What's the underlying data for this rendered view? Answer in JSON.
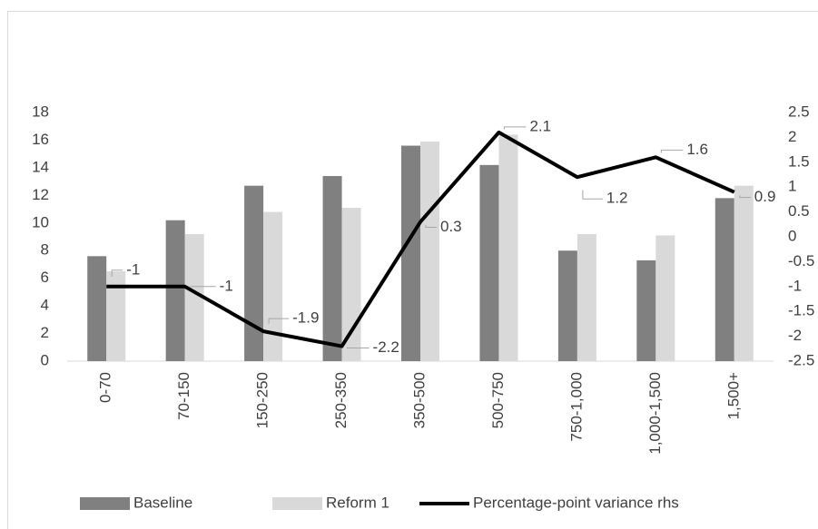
{
  "chart_data": {
    "type": "bar",
    "categories": [
      "0-70",
      "70-150",
      "150-250",
      "250-350",
      "350-500",
      "500-750",
      "750-1,000",
      "1,000-1,500",
      "1,500+"
    ],
    "series": [
      {
        "name": "Baseline",
        "color": "#808080",
        "values": [
          7.6,
          10.2,
          12.7,
          13.4,
          15.6,
          14.2,
          8.0,
          7.3,
          11.8
        ]
      },
      {
        "name": "Reform 1",
        "color": "#d9d9d9",
        "values": [
          6.5,
          9.2,
          10.8,
          11.1,
          15.9,
          16.4,
          9.2,
          9.1,
          12.7
        ]
      },
      {
        "name": "Percentage-point variance rhs",
        "color": "#000000",
        "type": "line",
        "axis": "y2",
        "values": [
          -1,
          -1,
          -1.9,
          -2.2,
          0.3,
          2.1,
          1.2,
          1.6,
          0.9
        ]
      }
    ],
    "ylim": [
      0,
      18
    ],
    "yticks": [
      0,
      2,
      4,
      6,
      8,
      10,
      12,
      14,
      16,
      18
    ],
    "y2lim": [
      -2.5,
      2.5
    ],
    "y2ticks": [
      -2.5,
      -2,
      -1.5,
      -1,
      -0.5,
      0,
      0.5,
      1,
      1.5,
      2,
      2.5
    ],
    "grid": false
  }
}
